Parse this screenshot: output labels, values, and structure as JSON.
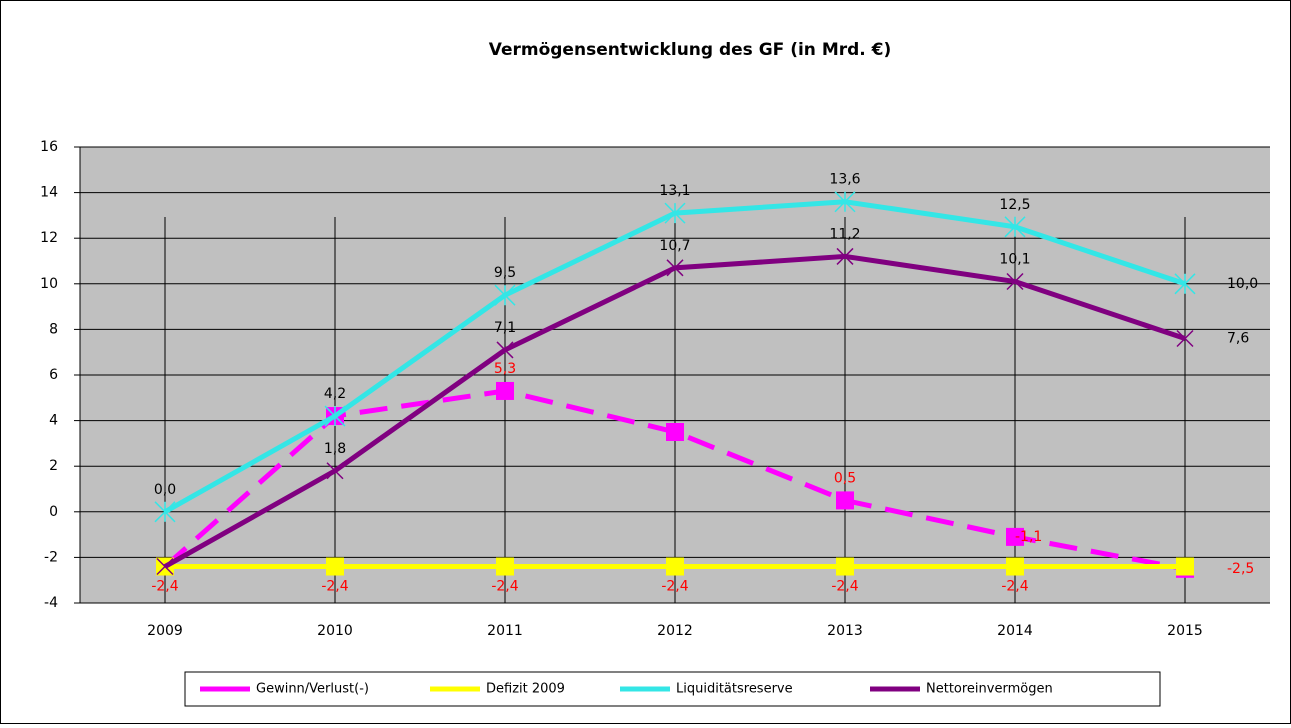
{
  "chart_data": {
    "type": "line",
    "title": "Vermögensentwicklung des GF (in Mrd. €)",
    "categories": [
      "2009",
      "2010",
      "2011",
      "2012",
      "2013",
      "2014",
      "2015"
    ],
    "ylim": [
      -4,
      16
    ],
    "yticks": [
      -4,
      -2,
      0,
      2,
      4,
      6,
      8,
      10,
      12,
      14,
      16
    ],
    "grid": true,
    "series": [
      {
        "name": "Gewinn/Verlust(-)",
        "color": "#ff00ff",
        "dashed": true,
        "marker": "square",
        "values": [
          -2.4,
          4.2,
          5.3,
          3.5,
          0.5,
          -1.1,
          -2.5
        ],
        "value_labels": [
          null,
          null,
          "5,3",
          null,
          "0,5",
          "-1,1",
          "-2,5"
        ],
        "label_color": "#ff0000"
      },
      {
        "name": "Defizit 2009",
        "color": "#ffff00",
        "dashed": false,
        "marker": "square",
        "values": [
          -2.4,
          -2.4,
          -2.4,
          -2.4,
          -2.4,
          -2.4,
          -2.4
        ],
        "value_labels": [
          "-2,4",
          "-2,4",
          "-2,4",
          "-2,4",
          "-2,4",
          "-2,4",
          null
        ],
        "label_color": "#ff0000"
      },
      {
        "name": "Liquiditätsreserve",
        "color": "#33e6e6",
        "dashed": false,
        "marker": "star",
        "values": [
          0.0,
          4.2,
          9.5,
          13.1,
          13.6,
          12.5,
          10.0
        ],
        "value_labels": [
          "0,0",
          "4,2",
          "9,5",
          "13,1",
          "13,6",
          "12,5",
          "10,0"
        ],
        "label_color": "#000000"
      },
      {
        "name": "Nettoreinvermögen",
        "color": "#800080",
        "dashed": false,
        "marker": "x",
        "values": [
          -2.4,
          1.8,
          7.1,
          10.7,
          11.2,
          10.1,
          7.6
        ],
        "value_labels": [
          null,
          "1,8",
          "7,1",
          "10,7",
          "11,2",
          "10,1",
          "7,6"
        ],
        "label_color": "#000000"
      }
    ]
  }
}
